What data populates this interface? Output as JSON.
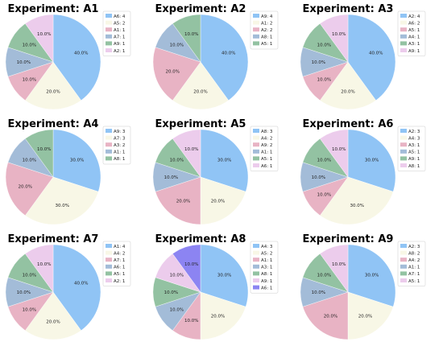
{
  "colors": {
    "blue": "#90c4f5",
    "cream": "#f8f7e6",
    "pink": "#e8b3c4",
    "steel": "#a3bcd8",
    "green": "#93c2a2",
    "lilac": "#ecccec",
    "violet": "#8c84f2",
    "legend_border": "#cccccc"
  },
  "chart_data": [
    {
      "type": "pie",
      "title": "Experiment: A1",
      "slices": [
        {
          "label": "A6: 4",
          "value": 40.0,
          "pct_label": "40.0%",
          "color": "blue"
        },
        {
          "label": "A5: 2",
          "value": 20.0,
          "pct_label": "20.0%",
          "color": "cream"
        },
        {
          "label": "A1: 1",
          "value": 10.0,
          "pct_label": "10.0%",
          "color": "pink"
        },
        {
          "label": "A7: 1",
          "value": 10.0,
          "pct_label": "10.0%",
          "color": "steel"
        },
        {
          "label": "A9: 1",
          "value": 10.0,
          "pct_label": "10.0%",
          "color": "green"
        },
        {
          "label": "A2: 1",
          "value": 10.0,
          "pct_label": "10.0%",
          "color": "lilac"
        }
      ]
    },
    {
      "type": "pie",
      "title": "Experiment: A2",
      "slices": [
        {
          "label": "A9: 4",
          "value": 40.0,
          "pct_label": "40.0%",
          "color": "blue"
        },
        {
          "label": "A1: 2",
          "value": 20.0,
          "pct_label": "20.0%",
          "color": "cream"
        },
        {
          "label": "A2: 2",
          "value": 20.0,
          "pct_label": "20.0%",
          "color": "pink"
        },
        {
          "label": "A8: 1",
          "value": 10.0,
          "pct_label": "10.0%",
          "color": "steel"
        },
        {
          "label": "A5: 1",
          "value": 10.0,
          "pct_label": "10.0%",
          "color": "green"
        }
      ]
    },
    {
      "type": "pie",
      "title": "Experiment: A3",
      "slices": [
        {
          "label": "A2: 4",
          "value": 40.0,
          "pct_label": "40.0%",
          "color": "blue"
        },
        {
          "label": "A6: 2",
          "value": 20.0,
          "pct_label": "20.0%",
          "color": "cream"
        },
        {
          "label": "A5: 1",
          "value": 10.0,
          "pct_label": "10.0%",
          "color": "pink"
        },
        {
          "label": "A4: 1",
          "value": 10.0,
          "pct_label": "10.0%",
          "color": "steel"
        },
        {
          "label": "A3: 1",
          "value": 10.0,
          "pct_label": "10.0%",
          "color": "green"
        },
        {
          "label": "A9: 1",
          "value": 10.0,
          "pct_label": "10.0%",
          "color": "lilac"
        }
      ]
    },
    {
      "type": "pie",
      "title": "Experiment: A4",
      "slices": [
        {
          "label": "A9: 3",
          "value": 30.0,
          "pct_label": "30.0%",
          "color": "blue"
        },
        {
          "label": "A7: 3",
          "value": 30.0,
          "pct_label": "30.0%",
          "color": "cream"
        },
        {
          "label": "A3: 2",
          "value": 20.0,
          "pct_label": "20.0%",
          "color": "pink"
        },
        {
          "label": "A1: 1",
          "value": 10.0,
          "pct_label": "10.0%",
          "color": "steel"
        },
        {
          "label": "A8: 1",
          "value": 10.0,
          "pct_label": "10.0%",
          "color": "green"
        }
      ]
    },
    {
      "type": "pie",
      "title": "Experiment: A5",
      "slices": [
        {
          "label": "A8: 3",
          "value": 30.0,
          "pct_label": "30.0%",
          "color": "blue"
        },
        {
          "label": "A4: 2",
          "value": 20.0,
          "pct_label": "20.0%",
          "color": "cream"
        },
        {
          "label": "A9: 2",
          "value": 20.0,
          "pct_label": "20.0%",
          "color": "pink"
        },
        {
          "label": "A1: 1",
          "value": 10.0,
          "pct_label": "10.0%",
          "color": "steel"
        },
        {
          "label": "A5: 1",
          "value": 10.0,
          "pct_label": "10.0%",
          "color": "green"
        },
        {
          "label": "A6: 1",
          "value": 10.0,
          "pct_label": "10.0%",
          "color": "lilac"
        }
      ]
    },
    {
      "type": "pie",
      "title": "Experiment: A6",
      "slices": [
        {
          "label": "A2: 3",
          "value": 30.0,
          "pct_label": "30.0%",
          "color": "blue"
        },
        {
          "label": "A4: 3",
          "value": 30.0,
          "pct_label": "30.0%",
          "color": "cream"
        },
        {
          "label": "A3: 1",
          "value": 10.0,
          "pct_label": "10.0%",
          "color": "pink"
        },
        {
          "label": "A5: 1",
          "value": 10.0,
          "pct_label": "10.0%",
          "color": "steel"
        },
        {
          "label": "A9: 1",
          "value": 10.0,
          "pct_label": "10.0%",
          "color": "green"
        },
        {
          "label": "A8: 1",
          "value": 10.0,
          "pct_label": "10.0%",
          "color": "lilac"
        }
      ]
    },
    {
      "type": "pie",
      "title": "Experiment: A7",
      "slices": [
        {
          "label": "A1: 4",
          "value": 40.0,
          "pct_label": "40.0%",
          "color": "blue"
        },
        {
          "label": "A4: 2",
          "value": 20.0,
          "pct_label": "20.0%",
          "color": "cream"
        },
        {
          "label": "A7: 1",
          "value": 10.0,
          "pct_label": "10.0%",
          "color": "pink"
        },
        {
          "label": "A6: 1",
          "value": 10.0,
          "pct_label": "10.0%",
          "color": "steel"
        },
        {
          "label": "A5: 1",
          "value": 10.0,
          "pct_label": "10.0%",
          "color": "green"
        },
        {
          "label": "A2: 1",
          "value": 10.0,
          "pct_label": "10.0%",
          "color": "lilac"
        }
      ]
    },
    {
      "type": "pie",
      "title": "Experiment: A8",
      "slices": [
        {
          "label": "A4: 3",
          "value": 30.0,
          "pct_label": "30.0%",
          "color": "blue"
        },
        {
          "label": "A5: 2",
          "value": 20.0,
          "pct_label": "20.0%",
          "color": "cream"
        },
        {
          "label": "A1: 1",
          "value": 10.0,
          "pct_label": "10.0%",
          "color": "pink"
        },
        {
          "label": "A3: 1",
          "value": 10.0,
          "pct_label": "10.0%",
          "color": "steel"
        },
        {
          "label": "A8: 1",
          "value": 10.0,
          "pct_label": "10.0%",
          "color": "green"
        },
        {
          "label": "A9: 1",
          "value": 10.0,
          "pct_label": "10.0%",
          "color": "lilac"
        },
        {
          "label": "A6: 1",
          "value": 10.0,
          "pct_label": "10.0%",
          "color": "violet"
        }
      ]
    },
    {
      "type": "pie",
      "title": "Experiment: A9",
      "slices": [
        {
          "label": "A2: 3",
          "value": 30.0,
          "pct_label": "30.0%",
          "color": "blue"
        },
        {
          "label": "A8: 2",
          "value": 20.0,
          "pct_label": "20.0%",
          "color": "cream"
        },
        {
          "label": "A4: 2",
          "value": 20.0,
          "pct_label": "20.0%",
          "color": "pink"
        },
        {
          "label": "A1: 1",
          "value": 10.0,
          "pct_label": "10.0%",
          "color": "steel"
        },
        {
          "label": "A7: 1",
          "value": 10.0,
          "pct_label": "10.0%",
          "color": "green"
        },
        {
          "label": "A5: 1",
          "value": 10.0,
          "pct_label": "10.0%",
          "color": "lilac"
        }
      ]
    }
  ]
}
